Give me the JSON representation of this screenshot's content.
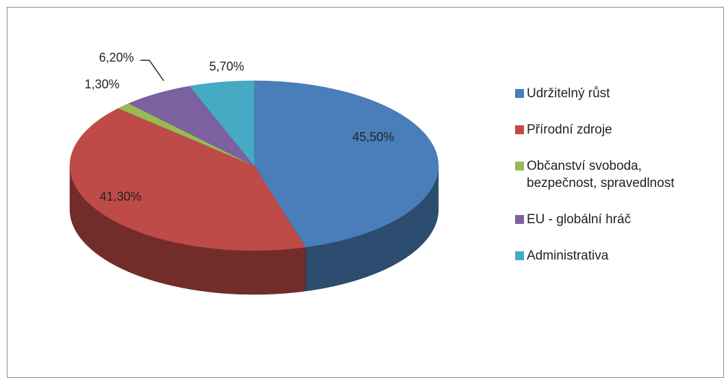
{
  "chart_data": {
    "type": "pie",
    "categories": [
      "Udržitelný růst",
      "Přírodní zdroje",
      "Občanství svoboda, bezpečnost, spravedlnost",
      "EU - globální hráč",
      "Administrativa"
    ],
    "values": [
      45.5,
      41.3,
      1.3,
      6.2,
      5.7
    ],
    "value_labels": [
      "45,50%",
      "41,30%",
      "1,30%",
      "6,20%",
      "5,70%"
    ],
    "colors": [
      "#4a7ebb",
      "#be4b48",
      "#98b954",
      "#7d60a0",
      "#46aac5"
    ],
    "legend": "right"
  }
}
